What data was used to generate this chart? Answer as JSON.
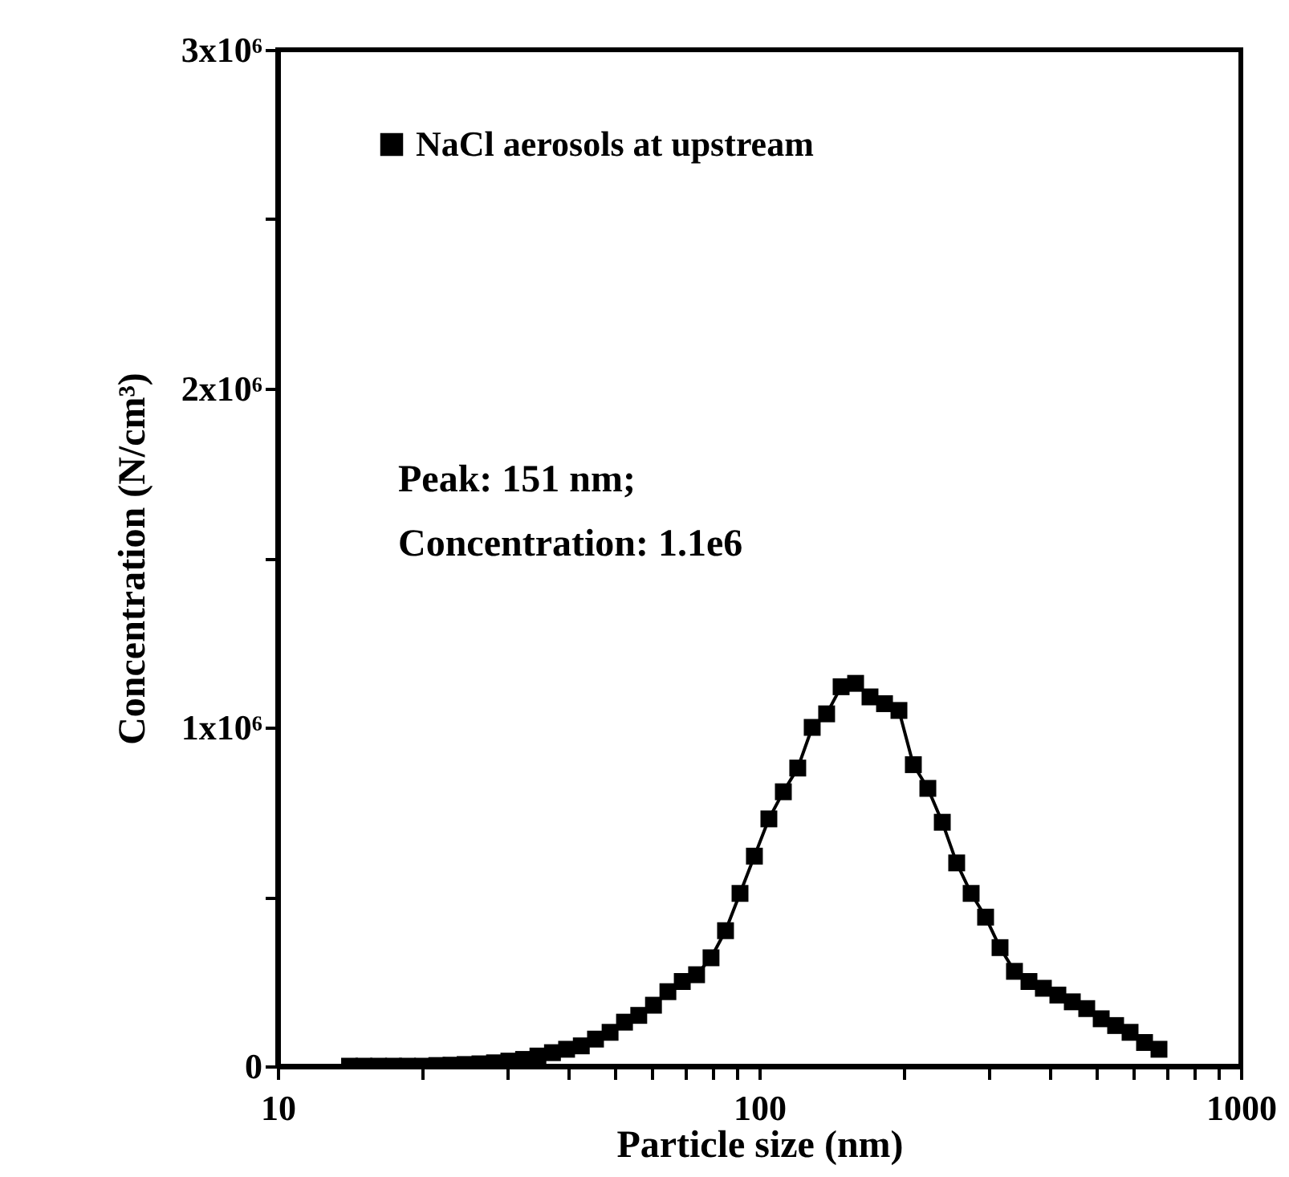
{
  "chart_data": {
    "type": "line",
    "xlabel": "Particle size (nm)",
    "ylabel": "Concentration (N/cm³)",
    "annotations": [
      "Peak: 151 nm;",
      "Concentration: 1.1e6"
    ],
    "log": "x",
    "grid": false,
    "legend": "top left",
    "marker": "square",
    "line_style": "solid",
    "xlim": [
      10,
      1000
    ],
    "xticks": [
      10,
      {
        "value": 20,
        "label": null
      },
      {
        "value": 30,
        "label": null
      },
      {
        "value": 40,
        "label": null
      },
      {
        "value": 50,
        "label": null
      },
      {
        "value": 60,
        "label": null
      },
      {
        "value": 70,
        "label": null
      },
      {
        "value": 80,
        "label": null
      },
      {
        "value": 90,
        "label": null
      },
      100,
      {
        "value": 200,
        "label": null
      },
      {
        "value": 300,
        "label": null
      },
      {
        "value": 400,
        "label": null
      },
      {
        "value": 500,
        "label": null
      },
      {
        "value": 600,
        "label": null
      },
      {
        "value": 700,
        "label": null
      },
      {
        "value": 800,
        "label": null
      },
      {
        "value": 900,
        "label": null
      },
      1000
    ],
    "ylim": [
      0,
      3000000
    ],
    "yticks": [
      0,
      {
        "value": 500000,
        "label": null
      },
      {
        "value": 1000000,
        "label": "1x10⁶"
      },
      {
        "value": 1500000,
        "label": null
      },
      {
        "value": 2000000,
        "label": "2x10⁶"
      },
      {
        "value": 2500000,
        "label": null
      },
      {
        "value": 3000000,
        "label": "3x10⁶"
      }
    ],
    "x": [
      14.1,
      15.1,
      16.2,
      17.4,
      18.6,
      20.0,
      21.4,
      22.9,
      24.5,
      26.3,
      28.2,
      30.2,
      32.4,
      34.7,
      37.2,
      39.8,
      42.7,
      45.7,
      49.0,
      52.5,
      56.2,
      60.3,
      64.6,
      69.2,
      74.1,
      79.4,
      85.1,
      91.2,
      97.7,
      104.7,
      112.2,
      120.2,
      128.8,
      138.0,
      147.9,
      158.5,
      169.8,
      182.0,
      195.0,
      208.9,
      223.9,
      239.9,
      257.0,
      275.4,
      295.1,
      316.2,
      338.8,
      363.1,
      389.0,
      416.9,
      446.7,
      478.6,
      512.9,
      549.5,
      588.8,
      631.0,
      676.1
    ],
    "series": [
      {
        "name": "NaCl aerosols at upstream",
        "color": "#000000",
        "values": [
          0,
          0,
          0,
          0,
          0,
          0,
          2000,
          3000,
          5000,
          7000,
          10000,
          15000,
          20000,
          30000,
          40000,
          50000,
          60000,
          80000,
          100000,
          130000,
          150000,
          180000,
          220000,
          250000,
          270000,
          320000,
          400000,
          510000,
          620000,
          730000,
          810000,
          880000,
          1000000,
          1040000,
          1120000,
          1130000,
          1090000,
          1070000,
          1050000,
          890000,
          820000,
          720000,
          600000,
          510000,
          440000,
          350000,
          280000,
          250000,
          230000,
          210000,
          190000,
          170000,
          140000,
          120000,
          100000,
          70000,
          50000
        ]
      }
    ]
  }
}
